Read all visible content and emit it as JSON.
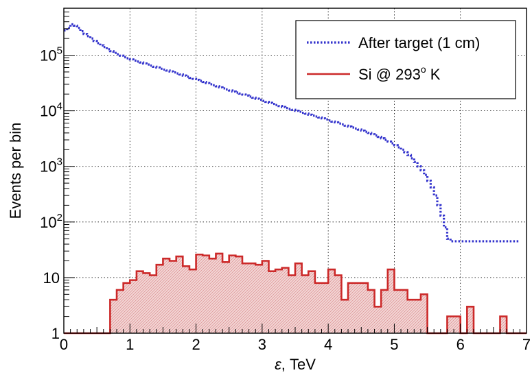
{
  "chart_data": {
    "type": "histogram",
    "xlabel": {
      "italic": "ε",
      "rest": ", TeV"
    },
    "ylabel": "Events per bin",
    "xlim": [
      0,
      7
    ],
    "ylim": [
      1,
      700000
    ],
    "log_y": true,
    "grid": true,
    "legend_position": "top-right",
    "x_ticks": [
      "0",
      "1",
      "2",
      "3",
      "4",
      "5",
      "6",
      "7"
    ],
    "y_ticks": [
      {
        "value": 1,
        "label": "1"
      },
      {
        "value": 10,
        "label": "10"
      },
      {
        "value": 100,
        "label": "10",
        "sup": "2"
      },
      {
        "value": 1000,
        "label": "10",
        "sup": "3"
      },
      {
        "value": 10000,
        "label": "10",
        "sup": "4"
      },
      {
        "value": 100000,
        "label": "10",
        "sup": "5"
      }
    ],
    "bin_width": 0.1,
    "series": [
      {
        "name": "After target (1 cm)",
        "color": "#3333cc",
        "style": "dotted",
        "x_start": 0,
        "bin_width": 0.05,
        "values": [
          280000,
          310000,
          360000,
          340000,
          310000,
          270000,
          240000,
          220000,
          200000,
          180000,
          165000,
          150000,
          140000,
          128000,
          118000,
          110000,
          104000,
          98000,
          92000,
          88000,
          84000,
          80000,
          77000,
          74000,
          71000,
          68000,
          65000,
          62000,
          60000,
          57000,
          55000,
          53000,
          51000,
          49000,
          47000,
          45000,
          43000,
          41000,
          39000,
          37500,
          36000,
          34500,
          33000,
          31500,
          30000,
          28800,
          27600,
          26400,
          25300,
          24200,
          23200,
          22200,
          21300,
          20400,
          19600,
          18800,
          18000,
          17200,
          16500,
          15800,
          15100,
          14500,
          13900,
          13300,
          12700,
          12200,
          11700,
          11200,
          10800,
          10400,
          10000,
          9600,
          9200,
          8900,
          8500,
          8200,
          7900,
          7600,
          7300,
          7000,
          6700,
          6400,
          6200,
          5900,
          5700,
          5400,
          5200,
          5000,
          4800,
          4600,
          4400,
          4200,
          4000,
          3800,
          3600,
          3400,
          3200,
          3000,
          2800,
          2600,
          2400,
          2200,
          2000,
          1800,
          1600,
          1400,
          1200,
          1000,
          850,
          700,
          550,
          420,
          300,
          200,
          130,
          80,
          50,
          45,
          45,
          45,
          45,
          45,
          45,
          45,
          45,
          45,
          45,
          45,
          45,
          45,
          45,
          45,
          45,
          45,
          45,
          45,
          45,
          45
        ]
      },
      {
        "name": "Si @ 293",
        "name_sup": "o",
        "name_suffix": " K",
        "color": "#cc2929",
        "style": "solid",
        "x_start": 0,
        "bin_width": 0.1,
        "values": [
          1,
          1,
          1,
          1,
          1,
          1,
          1,
          4,
          6,
          8,
          9,
          13,
          12,
          11,
          17,
          22,
          20,
          24,
          16,
          14,
          26,
          25,
          22,
          27,
          19,
          25,
          24,
          18,
          18,
          17,
          20,
          13,
          14,
          15,
          11,
          18,
          11,
          13,
          8,
          8,
          14,
          11,
          4,
          8,
          8,
          8,
          6,
          3,
          6,
          14,
          6,
          6,
          4,
          4,
          5,
          1,
          1,
          1,
          2,
          2,
          1,
          3,
          1,
          1,
          1,
          1,
          2,
          1,
          1,
          1
        ]
      }
    ]
  }
}
